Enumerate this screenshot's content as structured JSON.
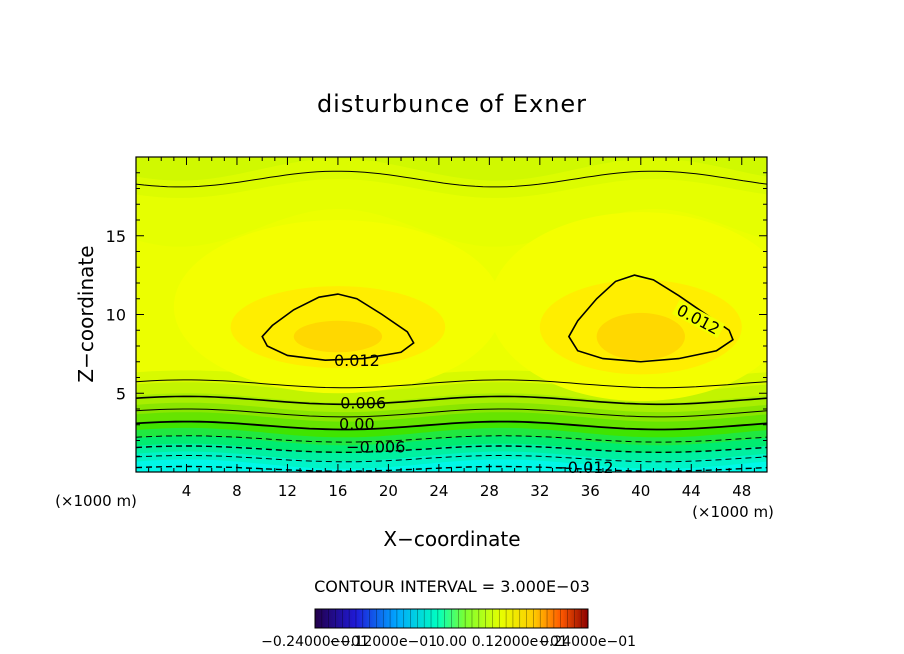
{
  "chart_data": {
    "type": "contour",
    "title": "disturbunce of Exner",
    "xlabel": "X−coordinate",
    "ylabel": "Z−coordinate",
    "xunit": "(×1000 m)",
    "yunit": "(×1000 m)",
    "xlim": [
      0,
      50
    ],
    "ylim": [
      0,
      20
    ],
    "xticks": [
      4,
      8,
      12,
      16,
      20,
      24,
      28,
      32,
      36,
      40,
      44,
      48
    ],
    "yticks": [
      5,
      10,
      15
    ],
    "contour_interval_text": "CONTOUR INTERVAL = 3.000E−03",
    "contour_labels": [
      {
        "text": "0.012",
        "x": 17.5,
        "z": 7.0
      },
      {
        "text": "0.012",
        "x": 44.5,
        "z": 9.6
      },
      {
        "text": "0.006",
        "x": 18.0,
        "z": 4.3
      },
      {
        "text": "0.00",
        "x": 17.5,
        "z": 2.95
      },
      {
        "text": "−0.006",
        "x": 19.0,
        "z": 1.5
      },
      {
        "text": "−0.012",
        "x": 35.5,
        "z": 0.2
      }
    ],
    "colorbar": {
      "range": [
        -0.024,
        0.024
      ],
      "labels": [
        "−0.24000e−01",
        "−0.12000e−01",
        "0.00",
        "0.12000e−01",
        "0.24000e−01"
      ],
      "colors": [
        "#23004a",
        "#2a00c8",
        "#0060ff",
        "#00e0f0",
        "#00ff90",
        "#a0ff00",
        "#ffee00",
        "#ff8000",
        "#e02000",
        "#8b0000"
      ]
    },
    "grid": false,
    "legend": "none"
  }
}
